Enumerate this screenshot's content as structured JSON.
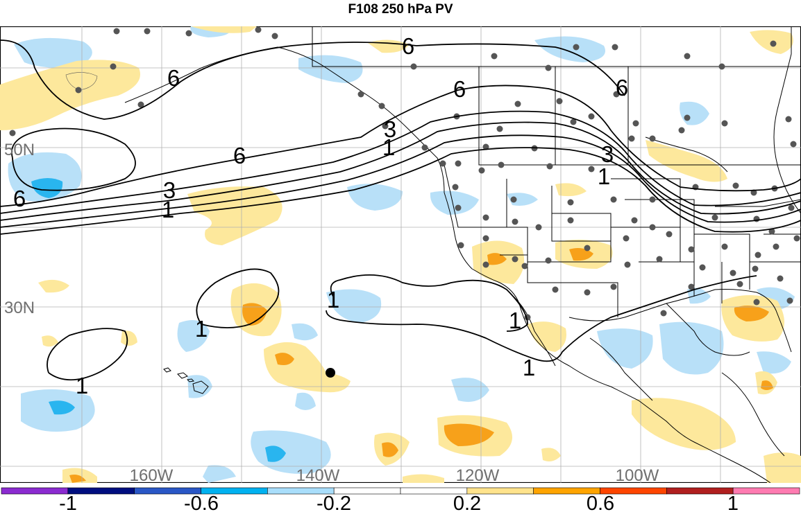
{
  "title": "F108 250 hPa PV",
  "latitude_labels": [
    "50N",
    "30N"
  ],
  "longitude_labels": [
    "160W",
    "140W",
    "120W",
    "100W"
  ],
  "contour_labels": [
    "6",
    "6",
    "6",
    "6",
    "6",
    "6",
    "3",
    "3",
    "3",
    "1",
    "1",
    "1",
    "1",
    "1",
    "1",
    "1",
    "1"
  ],
  "colorbar": {
    "colors": [
      "#8b2bd0",
      "#000e7f",
      "#2a57c6",
      "#00b1f0",
      "#a9defb",
      "#ffffff",
      "#ffffff",
      "#ffe38c",
      "#ffa400",
      "#ff4500",
      "#b01f1f",
      "#ff7bb1"
    ],
    "tick_labels": [
      "-1",
      "-0.6",
      "-0.2",
      "0.2",
      "0.6",
      "1"
    ]
  },
  "colors": {
    "positive_light": "#fde89c",
    "positive_mid": "#f7a11a",
    "negative_light": "#b8e0f8",
    "negative_mid": "#29b5ef",
    "station": "#555555",
    "coastline": "#000000",
    "grid": "#b0b0b0"
  }
}
